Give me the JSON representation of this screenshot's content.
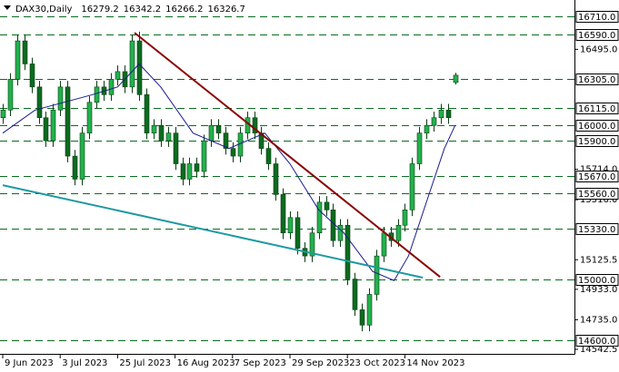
{
  "chart_data": {
    "type": "candlestick",
    "title": "DAX30,Daily",
    "candles": {
      "x": [
        0,
        2,
        4,
        6,
        8,
        10,
        12,
        14,
        16,
        18,
        20,
        22,
        24,
        26,
        28,
        30,
        32,
        34,
        36,
        38,
        40,
        42,
        44,
        46,
        48,
        50,
        52,
        54,
        56,
        58,
        60,
        62,
        64,
        66,
        68,
        70,
        72,
        74,
        76,
        78,
        80,
        82,
        84,
        86,
        88,
        90,
        92,
        94,
        96,
        98,
        100,
        102,
        104,
        106,
        108,
        110,
        112,
        114,
        116,
        118,
        120,
        122,
        124,
        126
      ],
      "open": [
        16050,
        16100,
        16300,
        16550,
        16400,
        16250,
        16050,
        15900,
        16100,
        16250,
        15800,
        15650,
        15950,
        16150,
        16250,
        16200,
        16300,
        16350,
        16250,
        16550,
        16200,
        15950,
        16000,
        15900,
        15950,
        15750,
        15650,
        15750,
        15700,
        15900,
        16000,
        15950,
        15850,
        15800,
        15950,
        16050,
        15950,
        15850,
        15750,
        15550,
        15300,
        15400,
        15200,
        15150,
        15300,
        15500,
        15450,
        15250,
        15350,
        15000,
        14800,
        14700,
        14900,
        15150,
        15300,
        15250,
        15350,
        15450,
        15750,
        15950,
        16000,
        16050,
        16100,
        16279.2
      ],
      "high": [
        16140,
        16340,
        16590,
        16590,
        16440,
        16290,
        16090,
        16140,
        16290,
        16290,
        15840,
        15990,
        16190,
        16290,
        16290,
        16340,
        16390,
        16390,
        16590,
        16610,
        16240,
        16040,
        16040,
        15990,
        15990,
        15790,
        15790,
        15790,
        15940,
        16040,
        16040,
        15990,
        15890,
        15990,
        16090,
        16090,
        15990,
        15890,
        15790,
        15590,
        15440,
        15440,
        15240,
        15340,
        15540,
        15540,
        15490,
        15390,
        15390,
        15040,
        14840,
        14940,
        15190,
        15340,
        15340,
        15390,
        15490,
        15790,
        15990,
        16040,
        16090,
        16140,
        16140,
        16342.2
      ],
      "low": [
        16010,
        16060,
        16260,
        16360,
        16210,
        16010,
        15860,
        15860,
        16060,
        15760,
        15610,
        15610,
        15910,
        16110,
        16160,
        16160,
        16260,
        16210,
        16210,
        16160,
        15910,
        15910,
        15860,
        15860,
        15710,
        15610,
        15610,
        15660,
        15660,
        15860,
        15910,
        15810,
        15760,
        15760,
        15910,
        15910,
        15810,
        15710,
        15510,
        15260,
        15260,
        15160,
        15110,
        15110,
        15260,
        15410,
        15210,
        15210,
        14960,
        14760,
        14660,
        14660,
        14860,
        15110,
        15210,
        15210,
        15310,
        15410,
        15710,
        15910,
        15960,
        16010,
        16010,
        16266.2
      ],
      "close": [
        16100,
        16300,
        16550,
        16400,
        16250,
        16050,
        15900,
        16100,
        16250,
        15800,
        15650,
        15950,
        16150,
        16250,
        16200,
        16300,
        16350,
        16250,
        16550,
        16200,
        15950,
        16000,
        15900,
        15950,
        15750,
        15650,
        15750,
        15700,
        15900,
        16000,
        15950,
        15850,
        15800,
        15950,
        16050,
        15950,
        15850,
        15750,
        15550,
        15300,
        15400,
        15200,
        15150,
        15300,
        15500,
        15450,
        15250,
        15350,
        15000,
        14800,
        14700,
        14900,
        15150,
        15300,
        15250,
        15350,
        15450,
        15750,
        15950,
        16000,
        16050,
        16100,
        16050,
        16326.7
      ],
      "up_color": "#22b14c",
      "down_color": "#0b6b1f",
      "wick_color": "#0a3d12"
    },
    "moving_average": {
      "x": [
        0,
        9,
        17,
        25,
        32,
        38,
        44,
        53,
        63,
        73,
        80,
        88,
        95,
        103,
        109,
        113,
        118,
        123,
        126
      ],
      "values": [
        15950,
        16100,
        16150,
        16200,
        16250,
        16400,
        16250,
        15950,
        15850,
        15950,
        15750,
        15450,
        15300,
        15050,
        14990,
        15150,
        15500,
        15850,
        16000
      ],
      "color": "#1a1a8c"
    },
    "trend_lines": [
      {
        "x": [
          36.7,
          121.8
        ],
        "values": [
          16603,
          15014
        ],
        "color": "#8b0000"
      },
      {
        "x": [
          0,
          117
        ],
        "values": [
          15611,
          15009
        ],
        "color": "#1f9aa0"
      }
    ],
    "levels": [
      {
        "value": 16710,
        "label": "16710.0"
      },
      {
        "value": 16590,
        "label": "16590.0"
      },
      {
        "value": 16305,
        "label": "16305.0"
      },
      {
        "value": 16115,
        "label": "16115.0"
      },
      {
        "value": 16000,
        "label": "16000.0"
      },
      {
        "value": 15900,
        "label": "15900.0"
      },
      {
        "value": 15670,
        "label": "15670.0"
      },
      {
        "value": 15560,
        "label": "15560.0"
      },
      {
        "value": 15330,
        "label": "15330.0"
      },
      {
        "value": 15000,
        "label": "15000.0"
      },
      {
        "value": 14600,
        "label": "14600.0"
      }
    ],
    "level_color": "#0b6b1f",
    "ylim": [
      14513,
      16816
    ],
    "yticks": [
      {
        "value": 16495,
        "label": "16495.0"
      },
      {
        "value": 15714,
        "label": "15714.0"
      },
      {
        "value": 15516,
        "label": "15516.0"
      },
      {
        "value": 15125.5,
        "label": "15125.5"
      },
      {
        "value": 14933,
        "label": "14933.0"
      },
      {
        "value": 14735,
        "label": "14735.0"
      },
      {
        "value": 14542.5,
        "label": "14542.5"
      }
    ],
    "xlim": [
      -0.76,
      159.24
    ],
    "xticks": [
      {
        "value": 0,
        "label": "9 Jun 2023"
      },
      {
        "value": 16,
        "label": "3 Jul 2023"
      },
      {
        "value": 32,
        "label": "25 Jul 2023"
      },
      {
        "value": 48,
        "label": "16 Aug 2023"
      },
      {
        "value": 64,
        "label": "7 Sep 2023"
      },
      {
        "value": 80,
        "label": "29 Sep 2023"
      },
      {
        "value": 96,
        "label": "23 Oct 2023"
      },
      {
        "value": 112,
        "label": "14 Nov 2023"
      }
    ]
  }
}
